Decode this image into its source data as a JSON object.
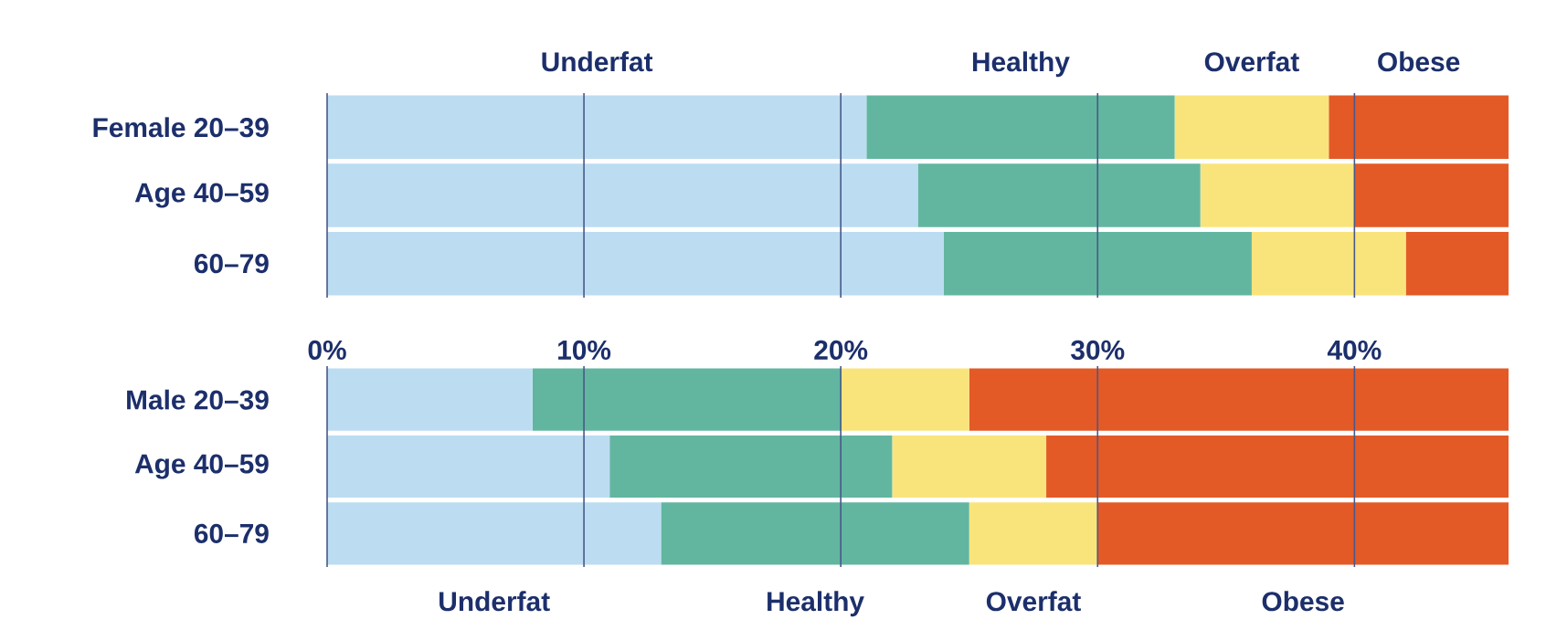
{
  "chart_data": [
    {
      "type": "bar",
      "orientation": "horizontal",
      "stacked": true,
      "categories": [
        "Female 20–39",
        "Age 40–59",
        "60–79"
      ],
      "xlim": [
        0,
        46
      ],
      "xticks": [
        {
          "value": 0,
          "label": null
        },
        {
          "value": 10,
          "label": null
        },
        {
          "value": 20,
          "label": null
        },
        {
          "value": 30,
          "label": null
        },
        {
          "value": 40,
          "label": null
        }
      ],
      "tick_labels": "y",
      "grid": "x",
      "legend": "top",
      "series": [
        {
          "name": "Underfat",
          "color": "#bcdcf2",
          "values": [
            21,
            23,
            24
          ]
        },
        {
          "name": "Healthy",
          "color": "#62b6a0",
          "values": [
            12,
            11,
            12
          ]
        },
        {
          "name": "Overfat",
          "color": "#f9e47c",
          "values": [
            6,
            6,
            6
          ]
        },
        {
          "name": "Obese",
          "color": "#e35a26",
          "values": [
            7,
            6,
            4
          ]
        }
      ]
    },
    {
      "type": "bar",
      "orientation": "horizontal",
      "stacked": true,
      "categories": [
        "Male 20–39",
        "Age 40–59",
        "60–79"
      ],
      "xlim": [
        0,
        46
      ],
      "xticks": [
        {
          "value": 0,
          "label": "0%"
        },
        {
          "value": 10,
          "label": "10%"
        },
        {
          "value": 20,
          "label": "20%"
        },
        {
          "value": 30,
          "label": "30%"
        },
        {
          "value": 40,
          "label": "40%"
        }
      ],
      "grid": "x",
      "legend": "bottom",
      "series": [
        {
          "name": "Underfat",
          "color": "#bcdcf2",
          "values": [
            8,
            11,
            13
          ]
        },
        {
          "name": "Healthy",
          "color": "#62b6a0",
          "values": [
            12,
            11,
            12
          ]
        },
        {
          "name": "Overfat",
          "color": "#f9e47c",
          "values": [
            5,
            6,
            5
          ]
        },
        {
          "name": "Obese",
          "color": "#e35a26",
          "values": [
            21,
            18,
            16
          ]
        }
      ]
    }
  ]
}
